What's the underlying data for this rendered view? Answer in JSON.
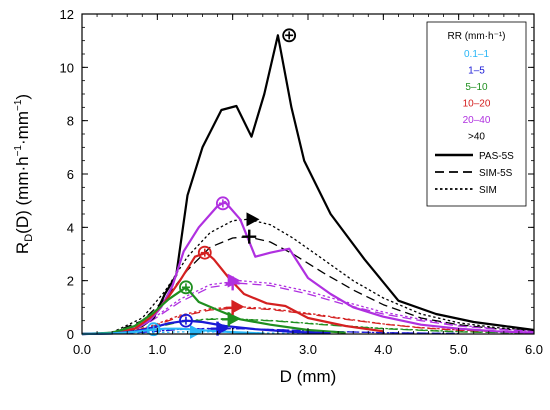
{
  "chart_data": {
    "type": "line",
    "xlabel": "D (mm)",
    "ylabel": "R",
    "ylabel_sub": "D",
    "ylabel_rest": "(D) (mm·h",
    "ylabel_sup1": "−1",
    "ylabel_mid": "·mm",
    "ylabel_sup2": "−1",
    "ylabel_end": ")",
    "xlim": [
      0,
      6
    ],
    "ylim": [
      0,
      12
    ],
    "xticks": [
      "0.0",
      "1.0",
      "2.0",
      "3.0",
      "4.0",
      "5.0",
      "6.0"
    ],
    "yticks": [
      "0",
      "2",
      "4",
      "6",
      "8",
      "10",
      "12"
    ],
    "legend": {
      "position": "top-right",
      "title": "RR (mm·h⁻¹)",
      "classes": [
        {
          "label": "0.1–1",
          "color": "#29b6f6"
        },
        {
          "label": "1–5",
          "color": "#1a1ad6"
        },
        {
          "label": "5–10",
          "color": "#1f8f1f"
        },
        {
          "label": "10–20",
          "color": "#d42020"
        },
        {
          "label": "20–40",
          "color": "#b030e0"
        },
        {
          "label": ">40",
          "color": "#000000"
        }
      ],
      "styles": [
        {
          "label": "PAS-5S",
          "dash": "solid"
        },
        {
          "label": "SIM-5S",
          "dash": "dashed"
        },
        {
          "label": "SIM",
          "dash": "dotted"
        }
      ]
    },
    "series": [
      {
        "class": ">40",
        "style": "PAS-5S",
        "color": "#000000",
        "x": [
          0,
          0.25,
          0.45,
          0.65,
          0.8,
          0.95,
          1.1,
          1.25,
          1.4,
          1.6,
          1.85,
          2.05,
          2.25,
          2.42,
          2.6,
          2.78,
          2.95,
          3.3,
          3.75,
          4.2,
          4.7,
          5.2,
          5.6,
          6.0
        ],
        "y": [
          0,
          0.02,
          0.05,
          0.15,
          0.3,
          0.6,
          1.5,
          2.2,
          5.2,
          7.0,
          8.4,
          8.55,
          7.4,
          9.0,
          11.2,
          8.5,
          6.5,
          4.5,
          2.8,
          1.25,
          0.75,
          0.45,
          0.3,
          0.15
        ],
        "marker": {
          "x": 2.75,
          "y": 11.2,
          "shape": "circle"
        }
      },
      {
        "class": "20–40",
        "style": "PAS-5S",
        "color": "#b030e0",
        "x": [
          0,
          0.3,
          0.55,
          0.75,
          0.9,
          1.05,
          1.2,
          1.35,
          1.55,
          1.8,
          1.9,
          2.1,
          2.3,
          2.5,
          2.75,
          3.0,
          3.3,
          3.6,
          4.0,
          4.5,
          5.0,
          5.5,
          6.0
        ],
        "y": [
          0,
          0.02,
          0.08,
          0.25,
          0.5,
          1.0,
          1.8,
          3.1,
          4.0,
          4.8,
          4.95,
          4.3,
          2.9,
          3.05,
          3.2,
          2.1,
          1.5,
          1.0,
          0.65,
          0.35,
          0.2,
          0.1,
          0.05
        ],
        "marker": {
          "x": 1.87,
          "y": 4.9,
          "shape": "circle"
        }
      },
      {
        "class": "10–20",
        "style": "PAS-5S",
        "color": "#d42020",
        "x": [
          0,
          0.4,
          0.7,
          0.9,
          1.1,
          1.3,
          1.5,
          1.65,
          1.75,
          1.95,
          2.15,
          2.45,
          2.7,
          3.0,
          3.5,
          4.0
        ],
        "y": [
          0,
          0.03,
          0.2,
          0.6,
          1.2,
          2.0,
          2.9,
          3.05,
          2.8,
          2.1,
          1.5,
          1.15,
          1.05,
          0.6,
          0.3,
          0.1
        ],
        "marker": {
          "x": 1.63,
          "y": 3.05,
          "shape": "circle"
        }
      },
      {
        "class": "5–10",
        "style": "PAS-5S",
        "color": "#1f8f1f",
        "x": [
          0,
          0.4,
          0.7,
          0.95,
          1.15,
          1.38,
          1.55,
          1.8,
          2.1,
          2.5,
          3.0,
          3.5
        ],
        "y": [
          0,
          0.05,
          0.3,
          0.8,
          1.3,
          1.75,
          1.2,
          0.9,
          0.55,
          0.35,
          0.15,
          0.05
        ],
        "marker": {
          "x": 1.38,
          "y": 1.75,
          "shape": "circle"
        }
      },
      {
        "class": "1–5",
        "style": "PAS-5S",
        "color": "#1a1ad6",
        "x": [
          0,
          0.4,
          0.7,
          0.95,
          1.15,
          1.38,
          1.6,
          1.9,
          2.3,
          2.8,
          3.3
        ],
        "y": [
          0,
          0.02,
          0.1,
          0.25,
          0.4,
          0.5,
          0.45,
          0.3,
          0.18,
          0.08,
          0.03
        ],
        "marker": {
          "x": 1.38,
          "y": 0.5,
          "shape": "circle"
        }
      },
      {
        "class": "0.1–1",
        "style": "PAS-5S",
        "color": "#29b6f6",
        "x": [
          0,
          0.4,
          0.7,
          0.9,
          1.1,
          1.3,
          1.6,
          2.0,
          2.4
        ],
        "y": [
          0,
          0.02,
          0.08,
          0.15,
          0.2,
          0.2,
          0.14,
          0.07,
          0.02
        ],
        "marker": {
          "x": 0.95,
          "y": 0.18,
          "shape": "circle"
        }
      },
      {
        "class": ">40",
        "style": "SIM-5S",
        "color": "#000000",
        "x": [
          0,
          0.4,
          0.8,
          1.1,
          1.4,
          1.7,
          2.0,
          2.2,
          2.5,
          2.8,
          3.2,
          3.6,
          4.0,
          4.5,
          5.0,
          5.5,
          6.0
        ],
        "y": [
          0,
          0.05,
          0.5,
          1.3,
          2.4,
          3.25,
          3.6,
          3.65,
          3.45,
          3.0,
          2.3,
          1.65,
          1.1,
          0.6,
          0.35,
          0.2,
          0.12
        ],
        "marker": {
          "x": 2.22,
          "y": 3.65,
          "shape": "plus"
        }
      },
      {
        "class": "20–40",
        "style": "SIM-5S",
        "color": "#b030e0",
        "x": [
          0,
          0.5,
          0.9,
          1.3,
          1.7,
          2.1,
          2.5,
          3.0,
          3.5,
          4.0,
          4.5,
          5.0,
          5.5,
          6.0
        ],
        "y": [
          0,
          0.05,
          0.45,
          1.2,
          1.75,
          1.9,
          1.82,
          1.5,
          1.1,
          0.75,
          0.5,
          0.3,
          0.18,
          0.1
        ],
        "marker": {
          "x": 2.0,
          "y": 1.9,
          "shape": "plus"
        }
      },
      {
        "class": "10–20",
        "style": "SIM-5S",
        "color": "#d42020",
        "x": [
          0,
          0.5,
          0.9,
          1.3,
          1.7,
          2.1,
          2.5,
          3.0,
          3.5,
          4.0,
          4.5,
          5.0,
          6.0
        ],
        "y": [
          0,
          0.03,
          0.25,
          0.65,
          0.9,
          0.98,
          0.92,
          0.75,
          0.55,
          0.37,
          0.23,
          0.14,
          0.05
        ],
        "marker": {
          "x": 2.0,
          "y": 0.98,
          "shape": "plus"
        }
      },
      {
        "class": "5–10",
        "style": "SIM-5S",
        "color": "#1f8f1f",
        "x": [
          0,
          0.5,
          0.9,
          1.3,
          1.7,
          2.1,
          2.6,
          3.2,
          4.0,
          5.0,
          6.0
        ],
        "y": [
          0,
          0.03,
          0.2,
          0.45,
          0.55,
          0.55,
          0.48,
          0.35,
          0.2,
          0.08,
          0.03
        ],
        "marker": {
          "x": 1.95,
          "y": 0.55,
          "shape": "plus"
        }
      },
      {
        "class": "1–5",
        "style": "SIM-5S",
        "color": "#1a1ad6",
        "x": [
          0,
          0.5,
          0.9,
          1.3,
          1.7,
          2.1,
          2.6,
          3.2,
          4.0,
          5.0
        ],
        "y": [
          0,
          0.02,
          0.08,
          0.17,
          0.2,
          0.2,
          0.16,
          0.1,
          0.05,
          0.02
        ],
        "marker": {
          "x": 1.8,
          "y": 0.2,
          "shape": "plus"
        }
      },
      {
        "class": ">40",
        "style": "SIM",
        "color": "#000000",
        "x": [
          0,
          0.4,
          0.8,
          1.1,
          1.4,
          1.7,
          2.0,
          2.2,
          2.5,
          2.8,
          3.2,
          3.6,
          4.0,
          4.5,
          5.0,
          5.5,
          6.0
        ],
        "y": [
          0,
          0.06,
          0.6,
          1.6,
          2.9,
          3.8,
          4.25,
          4.3,
          4.1,
          3.6,
          2.8,
          2.0,
          1.35,
          0.75,
          0.42,
          0.24,
          0.14
        ],
        "marker": {
          "x": 2.25,
          "y": 4.3,
          "shape": "triangle"
        }
      },
      {
        "class": "20–40",
        "style": "SIM",
        "color": "#b030e0",
        "x": [
          0,
          0.5,
          0.9,
          1.3,
          1.7,
          2.1,
          2.5,
          3.0,
          3.5,
          4.0,
          4.5,
          5.0,
          5.5,
          6.0
        ],
        "y": [
          0,
          0.05,
          0.5,
          1.3,
          1.85,
          2.0,
          1.9,
          1.6,
          1.2,
          0.82,
          0.55,
          0.33,
          0.2,
          0.1
        ],
        "marker": {
          "x": 2.0,
          "y": 2.0,
          "shape": "triangle"
        }
      },
      {
        "class": "10–20",
        "style": "SIM",
        "color": "#d42020",
        "x": [
          0,
          0.5,
          0.9,
          1.3,
          1.7,
          2.1,
          2.5,
          3.0,
          3.5,
          4.0,
          4.5,
          5.0,
          6.0
        ],
        "y": [
          0,
          0.03,
          0.28,
          0.7,
          0.95,
          1.02,
          0.95,
          0.78,
          0.57,
          0.38,
          0.24,
          0.15,
          0.05
        ],
        "marker": {
          "x": 2.05,
          "y": 1.02,
          "shape": "triangle"
        }
      },
      {
        "class": "5–10",
        "style": "SIM",
        "color": "#1f8f1f",
        "x": [
          0,
          0.5,
          0.9,
          1.3,
          1.7,
          2.1,
          2.6,
          3.2,
          4.0,
          5.0,
          6.0
        ],
        "y": [
          0,
          0.03,
          0.22,
          0.47,
          0.57,
          0.56,
          0.49,
          0.36,
          0.21,
          0.09,
          0.03
        ],
        "marker": {
          "x": 2.0,
          "y": 0.57,
          "shape": "triangle"
        }
      },
      {
        "class": "1–5",
        "style": "SIM",
        "color": "#1a1ad6",
        "x": [
          0,
          0.5,
          0.9,
          1.3,
          1.7,
          2.1,
          2.6,
          3.2,
          4.0,
          5.0
        ],
        "y": [
          0,
          0.02,
          0.09,
          0.18,
          0.21,
          0.2,
          0.16,
          0.1,
          0.05,
          0.02
        ],
        "marker": {
          "x": 1.85,
          "y": 0.21,
          "shape": "triangle"
        }
      },
      {
        "class": "0.1–1",
        "style": "SIM",
        "color": "#29b6f6",
        "x": [
          0,
          0.5,
          0.9,
          1.3,
          1.7,
          2.1,
          2.6,
          3.2
        ],
        "y": [
          0,
          0.02,
          0.05,
          0.08,
          0.08,
          0.06,
          0.03,
          0.01
        ],
        "marker": {
          "x": 1.5,
          "y": 0.08,
          "shape": "triangle"
        }
      }
    ]
  }
}
